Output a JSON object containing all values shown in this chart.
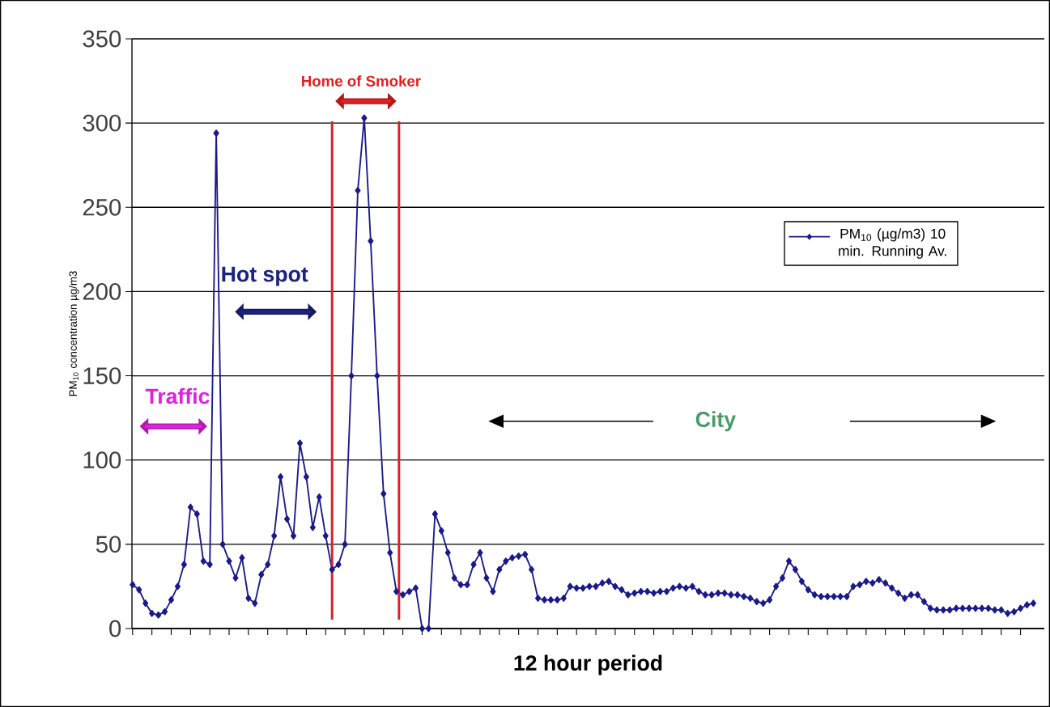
{
  "chart_data": {
    "type": "line",
    "xlabel": "12 hour period",
    "ylabel": "PM$_{10}$ concentration µg/m3",
    "categories": [
      null,
      null,
      null,
      null,
      null,
      null,
      null,
      null,
      null,
      null,
      null,
      null,
      null,
      null,
      null,
      null,
      null,
      null,
      null,
      null,
      null,
      null,
      null,
      null,
      null,
      null,
      null,
      null,
      null,
      null,
      null,
      null,
      null,
      null,
      null,
      null,
      null,
      null,
      null,
      null,
      null,
      null,
      null,
      null,
      null,
      null,
      null,
      null,
      null,
      null,
      null,
      null,
      null,
      null,
      null,
      null,
      null,
      null,
      null,
      null,
      null,
      null,
      null,
      null,
      null,
      null,
      null,
      null,
      null,
      null,
      null,
      null,
      null,
      null,
      null,
      null,
      null,
      null,
      null,
      null,
      null,
      null,
      null,
      null,
      null,
      null,
      null,
      null,
      null,
      null,
      null,
      null,
      null,
      null,
      null,
      null,
      null,
      null,
      null,
      null,
      null,
      null,
      null,
      null,
      null,
      null,
      null,
      null,
      null,
      null,
      null,
      null,
      null,
      null,
      null,
      null,
      null,
      null,
      null,
      null,
      null,
      null,
      null,
      null,
      null,
      null,
      null,
      null,
      null,
      null,
      null,
      null,
      null,
      null,
      null,
      null,
      null,
      null,
      null,
      null,
      null
    ],
    "series": [
      {
        "name": "PM$_{10}$ (µg/m3) 10 min. Running Av.",
        "color": "#1a1a8c",
        "values": [
          26,
          23,
          15,
          9,
          8,
          10,
          17,
          25,
          38,
          72,
          68,
          40,
          38,
          294,
          50,
          40,
          30,
          42,
          18,
          15,
          32,
          38,
          55,
          90,
          65,
          55,
          110,
          90,
          60,
          78,
          55,
          35,
          38,
          50,
          150,
          260,
          303,
          230,
          150,
          80,
          45,
          22,
          20,
          22,
          24,
          0,
          0,
          68,
          58,
          45,
          30,
          26,
          26,
          38,
          45,
          30,
          22,
          35,
          40,
          42,
          43,
          44,
          35,
          18,
          17,
          17,
          17,
          18,
          25,
          24,
          24,
          25,
          25,
          27,
          28,
          25,
          23,
          20,
          21,
          22,
          22,
          21,
          22,
          22,
          24,
          25,
          24,
          25,
          22,
          20,
          20,
          21,
          21,
          20,
          20,
          19,
          18,
          16,
          15,
          17,
          25,
          30,
          40,
          35,
          28,
          23,
          20,
          19,
          19,
          19,
          19,
          19,
          25,
          26,
          28,
          27,
          29,
          27,
          24,
          21,
          18,
          20,
          20,
          16,
          12,
          11,
          11,
          11,
          12,
          12,
          12,
          12,
          12,
          12,
          11,
          11,
          9,
          10,
          12,
          14,
          15
        ]
      }
    ],
    "ylim": [
      0,
      350
    ],
    "yticks": [
      0,
      50,
      100,
      150,
      200,
      250,
      300,
      350
    ],
    "grid": "y",
    "legend": "top right",
    "marker": "diamond",
    "line_style": "solid",
    "annotations": [
      "Traffic",
      "Hot  spot",
      "Home of Smoker",
      "City"
    ]
  }
}
